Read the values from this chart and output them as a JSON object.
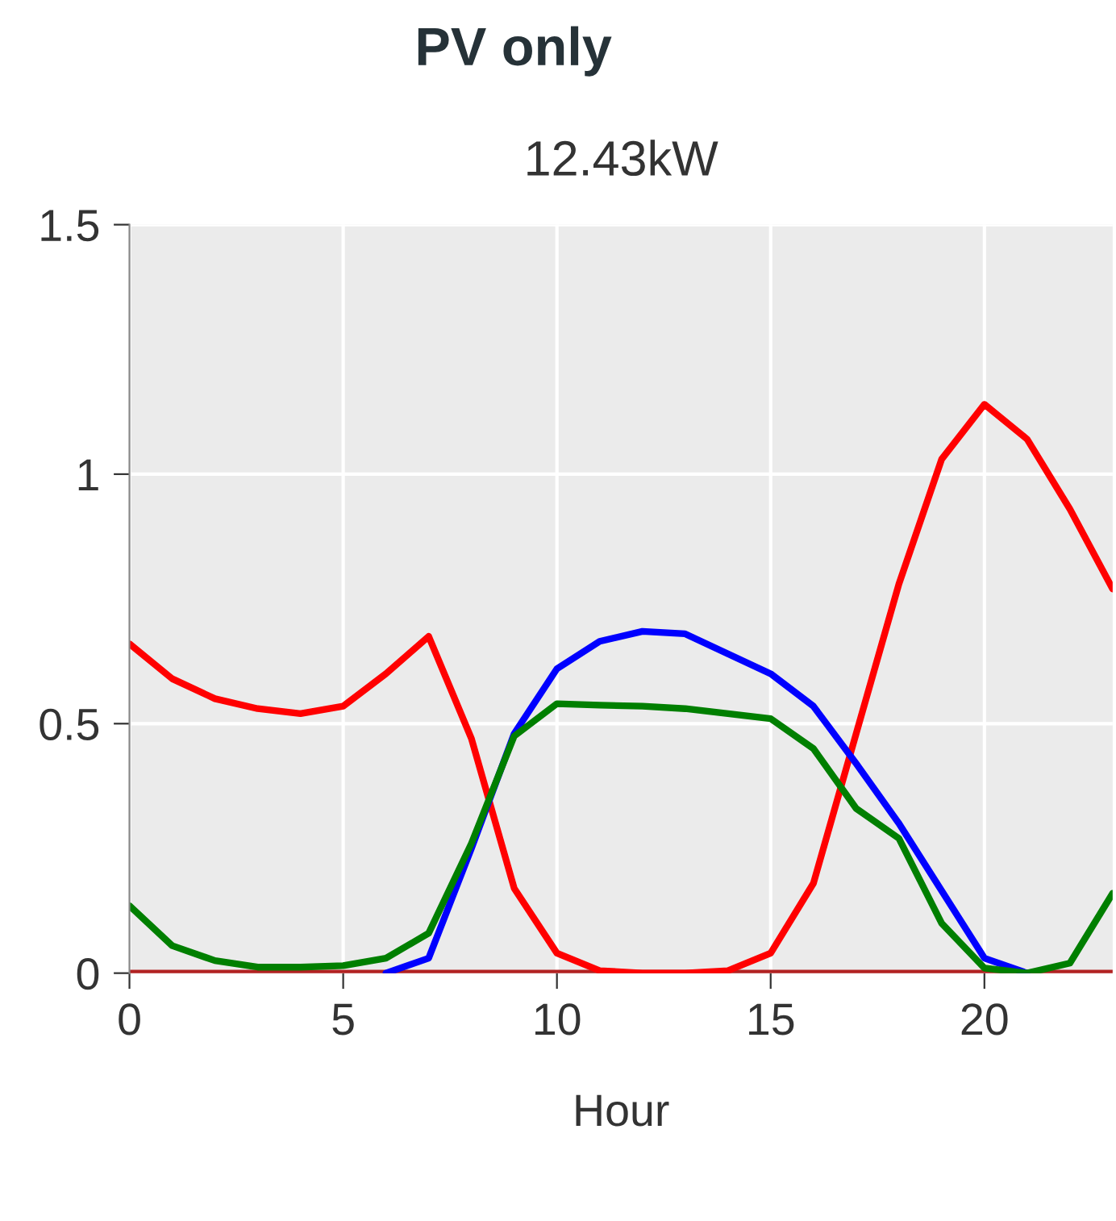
{
  "chart_data": {
    "type": "line",
    "title": "PV only",
    "subtitle": "12.43kW",
    "xlabel": "Hour",
    "x": [
      0,
      1,
      2,
      3,
      4,
      5,
      6,
      7,
      8,
      9,
      10,
      11,
      12,
      13,
      14,
      15,
      16,
      17,
      18,
      19,
      20,
      21,
      22,
      23
    ],
    "series": [
      {
        "color": "#b22222",
        "values": [
          0,
          0,
          0,
          0,
          0,
          0,
          0,
          0,
          0,
          0,
          0,
          0,
          0,
          0,
          0,
          0,
          0,
          0,
          0,
          0,
          0,
          0,
          0,
          0
        ]
      },
      {
        "color": "#ff0000",
        "values": [
          0.66,
          0.59,
          0.55,
          0.53,
          0.52,
          0.535,
          0.6,
          0.675,
          0.47,
          0.17,
          0.04,
          0.005,
          0,
          0,
          0.005,
          0.04,
          0.18,
          0.48,
          0.78,
          1.03,
          1.14,
          1.07,
          0.93,
          0.77
        ]
      },
      {
        "color": "#0000ff",
        "values": [
          null,
          null,
          null,
          null,
          null,
          null,
          0,
          0.03,
          0.25,
          0.48,
          0.61,
          0.665,
          0.685,
          0.68,
          0.64,
          0.6,
          0.535,
          0.42,
          0.3,
          0.165,
          0.03,
          0,
          null,
          null
        ]
      },
      {
        "color": "#007f00",
        "values": [
          0.135,
          0.055,
          0.025,
          0.012,
          0.012,
          0.015,
          0.03,
          0.08,
          0.26,
          0.475,
          0.54,
          0.537,
          0.535,
          0.53,
          0.52,
          0.51,
          0.45,
          0.33,
          0.27,
          0.1,
          0.01,
          0,
          0.02,
          0.16
        ]
      }
    ],
    "xlim": [
      0,
      23
    ],
    "xticks": [
      0,
      5,
      10,
      15,
      20
    ],
    "ylim": [
      0,
      1.5
    ],
    "yticks": [
      0,
      0.5,
      1,
      1.5
    ],
    "grid": true,
    "marker": "none",
    "line_style": "solid"
  }
}
